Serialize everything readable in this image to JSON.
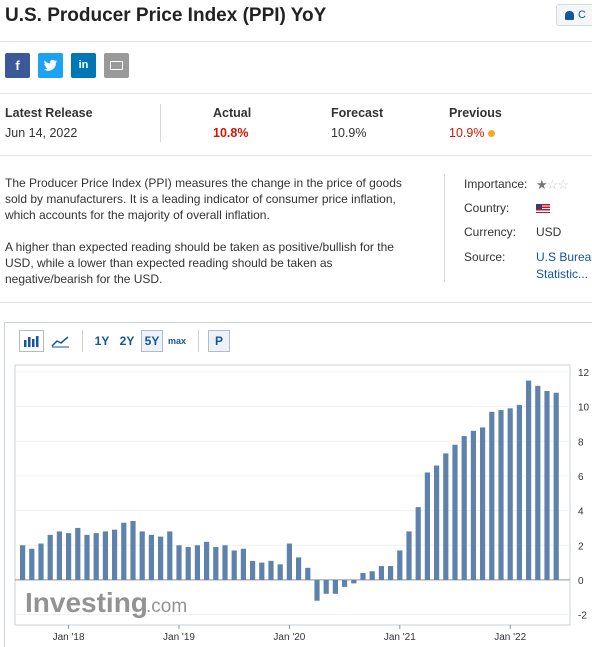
{
  "page": {
    "title": "U.S. Producer Price Index (PPI) YoY",
    "alert_label": "C"
  },
  "share": {
    "facebook": "f",
    "twitter": "t",
    "linkedin": "in"
  },
  "release": {
    "latest_label": "Latest Release",
    "latest_value": "Jun 14, 2022",
    "actual_label": "Actual",
    "actual_value": "10.8%",
    "forecast_label": "Forecast",
    "forecast_value": "10.9%",
    "previous_label": "Previous",
    "previous_value": "10.9%"
  },
  "description": {
    "p1": "The Producer Price Index (PPI) measures the change in the price of goods sold by manufacturers. It is a leading indicator of consumer price inflation, which accounts for the majority of overall inflation.",
    "p2": "A higher than expected reading should be taken as positive/bullish for the USD, while a lower than expected reading should be taken as negative/bearish for the USD."
  },
  "meta": {
    "importance_label": "Importance:",
    "country_label": "Country:",
    "currency_label": "Currency:",
    "currency_value": "USD",
    "source_label": "Source:",
    "source_line1": "U.S Bureau",
    "source_line2": "Statistic...",
    "importance_stars": 1
  },
  "toolbar": {
    "r1": "1Y",
    "r2": "2Y",
    "r3": "5Y",
    "rmax": "max",
    "p": "P"
  },
  "watermark": {
    "brand": "Investing",
    "suffix": ".com"
  },
  "colors": {
    "bar": "#5f82ad",
    "bar_light": "#b9cbe0",
    "link": "#1256a0",
    "actual": "#d91400"
  },
  "chart_data": {
    "type": "bar",
    "x_tick_labels": [
      "Jan '18",
      "Jan '19",
      "Jan '20",
      "Jan '21",
      "Jan '22"
    ],
    "y_tick_labels": [
      "12",
      "10",
      "8",
      "6",
      "4",
      "2",
      "0",
      "-2"
    ],
    "ylim": [
      -2.6,
      12.4
    ],
    "start": "2017-08",
    "values": [
      2.0,
      1.8,
      2.1,
      2.6,
      2.8,
      2.7,
      3.0,
      2.6,
      2.7,
      2.8,
      2.9,
      3.3,
      3.4,
      2.8,
      2.6,
      2.5,
      2.8,
      2.0,
      1.9,
      2.0,
      2.2,
      1.9,
      2.0,
      1.7,
      1.8,
      1.1,
      1.0,
      1.1,
      0.9,
      2.1,
      1.3,
      0.7,
      -1.2,
      -0.8,
      -0.8,
      -0.4,
      -0.2,
      0.4,
      0.5,
      0.8,
      0.8,
      1.7,
      2.8,
      4.2,
      6.2,
      6.6,
      7.3,
      7.8,
      8.3,
      8.6,
      8.8,
      9.7,
      9.8,
      9.9,
      10.1,
      11.5,
      11.2,
      10.9,
      10.8
    ]
  }
}
